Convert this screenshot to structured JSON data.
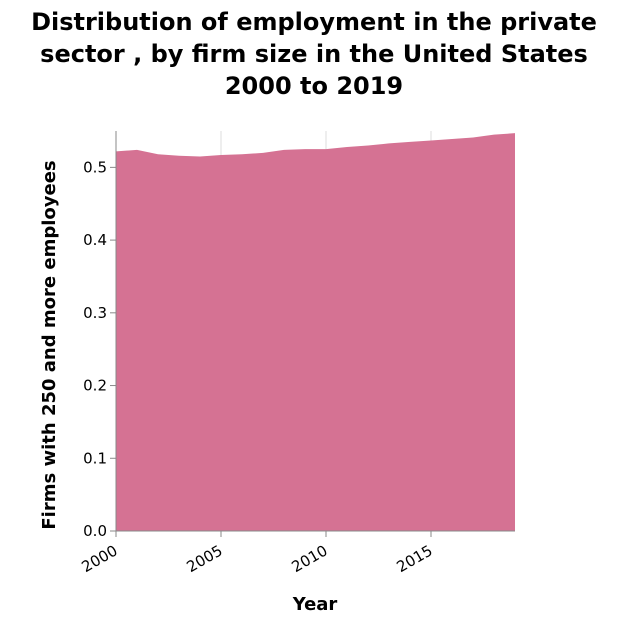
{
  "chart_data": {
    "type": "area",
    "title_lines": [
      "Distribution of employment in the private",
      "sector , by firm size in the United States",
      "2000 to 2019"
    ],
    "xlabel": "Year",
    "ylabel": "Firms with 250 and more employees",
    "xlim": [
      2000,
      2019
    ],
    "ylim": [
      0,
      0.55
    ],
    "x_ticks": [
      "2000",
      "2005",
      "2010",
      "2015"
    ],
    "y_ticks": [
      "0.0",
      "0.1",
      "0.2",
      "0.3",
      "0.4",
      "0.5"
    ],
    "grid": true,
    "series": [
      {
        "color": "#d57293",
        "x": [
          2000,
          2001,
          2002,
          2003,
          2004,
          2005,
          2006,
          2007,
          2008,
          2009,
          2010,
          2011,
          2012,
          2013,
          2014,
          2015,
          2016,
          2017,
          2018,
          2019
        ],
        "values": [
          0.522,
          0.524,
          0.518,
          0.516,
          0.515,
          0.517,
          0.518,
          0.52,
          0.524,
          0.525,
          0.525,
          0.528,
          0.53,
          0.533,
          0.535,
          0.537,
          0.539,
          0.541,
          0.545,
          0.547
        ]
      }
    ]
  }
}
